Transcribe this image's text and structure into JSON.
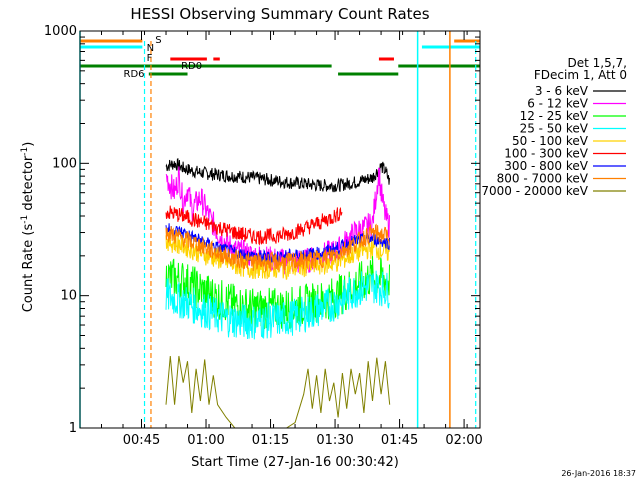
{
  "chart_data": {
    "type": "line",
    "title": "HESSI Observing Summary Count Rates",
    "xlabel": "Start Time (27-Jan-16 00:30:42)",
    "ylabel_parts": [
      "Count Rate (s",
      "-1",
      " detector",
      "-1",
      ")"
    ],
    "ylog": true,
    "ylim": [
      1,
      1000
    ],
    "xlim_minutes": [
      0,
      93
    ],
    "x_tick_labels": [
      {
        "label": "00:45",
        "min": 14.3
      },
      {
        "label": "01:00",
        "min": 29.3
      },
      {
        "label": "01:15",
        "min": 44.3
      },
      {
        "label": "01:30",
        "min": 59.3
      },
      {
        "label": "01:45",
        "min": 74.3
      },
      {
        "label": "02:00",
        "min": 89.3
      }
    ],
    "y_tick_labels": [
      {
        "label": "1",
        "value": 1
      },
      {
        "label": "10",
        "value": 10
      },
      {
        "label": "100",
        "value": 100
      },
      {
        "label": "1000",
        "value": 1000
      }
    ],
    "legend_header": [
      "Det 1,5,7,",
      "FDecim 1, Att 0"
    ],
    "legend_position": "right",
    "flag_labels": {
      "S": "S",
      "N": "N",
      "F": "F",
      "RD0": "RD0",
      "RD6": "RD6"
    },
    "series": [
      {
        "name": "3 - 6 keV",
        "color": "#000000",
        "points": [
          [
            20,
            95
          ],
          [
            22,
            100
          ],
          [
            24,
            92
          ],
          [
            26,
            88
          ],
          [
            28,
            85
          ],
          [
            32,
            82
          ],
          [
            36,
            80
          ],
          [
            40,
            78
          ],
          [
            44,
            75
          ],
          [
            48,
            72
          ],
          [
            52,
            70
          ],
          [
            56,
            68
          ],
          [
            60,
            68
          ],
          [
            62,
            70
          ],
          [
            64,
            72
          ],
          [
            66,
            75
          ],
          [
            68,
            78
          ],
          [
            70,
            95
          ],
          [
            71,
            88
          ],
          [
            72,
            72
          ]
        ]
      },
      {
        "name": "6 - 12 keV",
        "color": "#ff00ff",
        "points": [
          [
            20,
            80
          ],
          [
            22,
            60
          ],
          [
            23,
            80
          ],
          [
            24,
            50
          ],
          [
            25,
            65
          ],
          [
            26,
            45
          ],
          [
            28,
            55
          ],
          [
            30,
            40
          ],
          [
            32,
            30
          ],
          [
            34,
            25
          ],
          [
            36,
            22
          ],
          [
            40,
            20
          ],
          [
            44,
            19
          ],
          [
            48,
            18
          ],
          [
            52,
            18
          ],
          [
            56,
            20
          ],
          [
            60,
            22
          ],
          [
            62,
            26
          ],
          [
            64,
            30
          ],
          [
            66,
            32
          ],
          [
            68,
            35
          ],
          [
            69.5,
            88
          ],
          [
            70,
            60
          ],
          [
            71,
            40
          ],
          [
            72,
            33
          ]
        ]
      },
      {
        "name": "12 - 25 keV",
        "color": "#00ff00",
        "points": [
          [
            20,
            14
          ],
          [
            24,
            13
          ],
          [
            28,
            11
          ],
          [
            32,
            9.5
          ],
          [
            36,
            8.5
          ],
          [
            40,
            8
          ],
          [
            44,
            8
          ],
          [
            48,
            8
          ],
          [
            52,
            8.5
          ],
          [
            56,
            9
          ],
          [
            60,
            10
          ],
          [
            64,
            12
          ],
          [
            68,
            14
          ],
          [
            72,
            13
          ]
        ]
      },
      {
        "name": "25 - 50 keV",
        "color": "#00ffff",
        "points": [
          [
            20,
            10
          ],
          [
            24,
            9
          ],
          [
            28,
            8
          ],
          [
            32,
            7
          ],
          [
            36,
            6.5
          ],
          [
            40,
            6.3
          ],
          [
            44,
            6.5
          ],
          [
            48,
            6.7
          ],
          [
            52,
            7.2
          ],
          [
            56,
            8
          ],
          [
            60,
            9
          ],
          [
            64,
            11
          ],
          [
            68,
            12
          ],
          [
            72,
            11
          ]
        ]
      },
      {
        "name": "50 - 100 keV",
        "color": "#ffd200",
        "points": [
          [
            20,
            26
          ],
          [
            24,
            24
          ],
          [
            28,
            21
          ],
          [
            32,
            19
          ],
          [
            36,
            17
          ],
          [
            40,
            16
          ],
          [
            44,
            16
          ],
          [
            48,
            16
          ],
          [
            52,
            16.5
          ],
          [
            56,
            17
          ],
          [
            60,
            18
          ],
          [
            64,
            21
          ],
          [
            68,
            23
          ],
          [
            72,
            21
          ]
        ]
      },
      {
        "name": "100 - 300 keV",
        "color": "#ff0000",
        "points": [
          [
            20,
            43
          ],
          [
            24,
            40
          ],
          [
            28,
            36
          ],
          [
            32,
            33
          ],
          [
            36,
            30
          ],
          [
            40,
            28
          ],
          [
            44,
            28
          ],
          [
            48,
            29
          ],
          [
            52,
            32
          ],
          [
            56,
            36
          ],
          [
            60,
            41
          ],
          [
            61,
            45
          ]
        ]
      },
      {
        "name": "300 - 800 keV",
        "color": "#0000ff",
        "points": [
          [
            20,
            32
          ],
          [
            24,
            30
          ],
          [
            28,
            26
          ],
          [
            32,
            23
          ],
          [
            36,
            21
          ],
          [
            40,
            20
          ],
          [
            44,
            19.5
          ],
          [
            48,
            20
          ],
          [
            52,
            20.5
          ],
          [
            56,
            21
          ],
          [
            60,
            23
          ],
          [
            64,
            26
          ],
          [
            68,
            27
          ],
          [
            72,
            25
          ]
        ]
      },
      {
        "name": "800 - 7000 keV",
        "color": "#ff8000",
        "points": [
          [
            20,
            30
          ],
          [
            24,
            27
          ],
          [
            28,
            24
          ],
          [
            32,
            21
          ],
          [
            36,
            19
          ],
          [
            40,
            18
          ],
          [
            44,
            18
          ],
          [
            48,
            18
          ],
          [
            52,
            18.5
          ],
          [
            56,
            19
          ],
          [
            60,
            21
          ],
          [
            64,
            25
          ],
          [
            68,
            30
          ],
          [
            72,
            28
          ]
        ]
      },
      {
        "name": "7000 - 20000 keV",
        "color": "#808000",
        "points": [
          [
            20,
            1.5
          ],
          [
            21,
            3.5
          ],
          [
            22,
            1.5
          ],
          [
            23,
            3.5
          ],
          [
            24,
            2.2
          ],
          [
            25,
            3.2
          ],
          [
            26,
            1.3
          ],
          [
            27,
            2.8
          ],
          [
            28,
            1.6
          ],
          [
            29,
            3.3
          ],
          [
            30,
            1.5
          ],
          [
            31,
            2.5
          ],
          [
            32,
            1.5
          ],
          [
            34,
            1.2
          ],
          [
            36,
            1
          ],
          [
            48,
            1
          ],
          [
            50,
            1.1
          ],
          [
            52,
            1.8
          ],
          [
            53,
            2.8
          ],
          [
            54,
            1.4
          ],
          [
            55,
            2.5
          ],
          [
            56,
            1.3
          ],
          [
            57,
            2.8
          ],
          [
            58,
            1.6
          ],
          [
            59,
            2.2
          ],
          [
            60,
            1.2
          ],
          [
            61,
            2.6
          ],
          [
            62,
            1.4
          ],
          [
            63,
            2.8
          ],
          [
            64,
            1.8
          ],
          [
            65,
            2.6
          ],
          [
            66,
            1.3
          ],
          [
            67,
            3.2
          ],
          [
            68,
            1.6
          ],
          [
            69,
            3.4
          ],
          [
            70,
            1.8
          ],
          [
            71,
            3.2
          ],
          [
            72,
            1.5
          ]
        ]
      }
    ],
    "timestamp": "26-Jan-2016 18:37"
  },
  "colors": {
    "cyan": "#00ffff",
    "orange": "#ff8000",
    "red": "#ff0000",
    "green": "#008000",
    "axis": "#000000"
  }
}
